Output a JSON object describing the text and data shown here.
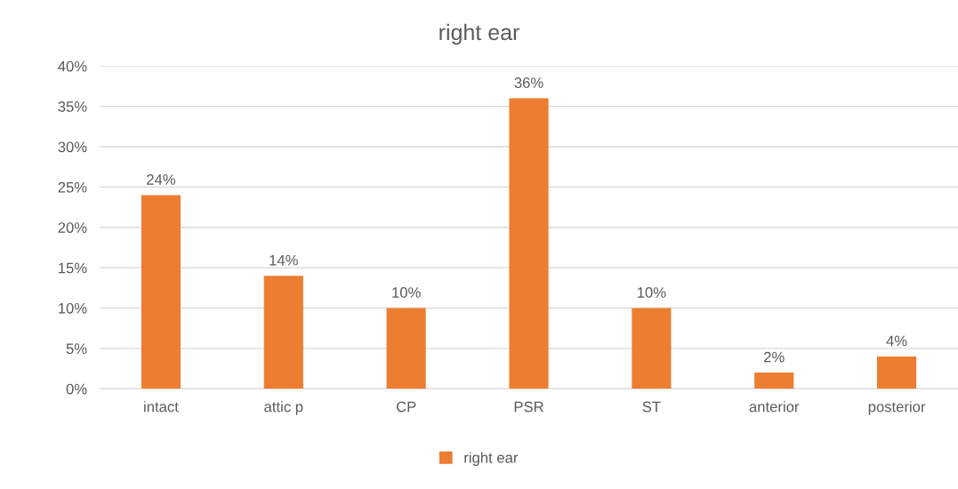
{
  "chart_data": {
    "type": "bar",
    "title": "right ear",
    "categories": [
      "intact",
      "attic p",
      "CP",
      "PSR",
      "ST",
      "anterior",
      "posterior"
    ],
    "series": [
      {
        "name": "right ear",
        "color": "#ed7d31",
        "values": [
          24,
          14,
          10,
          36,
          10,
          2,
          4
        ],
        "value_labels": [
          "24%",
          "14%",
          "10%",
          "36%",
          "10%",
          "2%",
          "4%"
        ]
      }
    ],
    "ylim": [
      0,
      40
    ],
    "yticks": [
      {
        "value": 0,
        "label": "0%"
      },
      {
        "value": 5,
        "label": "5%"
      },
      {
        "value": 10,
        "label": "10%"
      },
      {
        "value": 15,
        "label": "15%"
      },
      {
        "value": 20,
        "label": "20%"
      },
      {
        "value": 25,
        "label": "25%"
      },
      {
        "value": 30,
        "label": "30%"
      },
      {
        "value": 35,
        "label": "35%"
      },
      {
        "value": 40,
        "label": "40%"
      }
    ],
    "grid": "y",
    "legend": "bottom"
  }
}
